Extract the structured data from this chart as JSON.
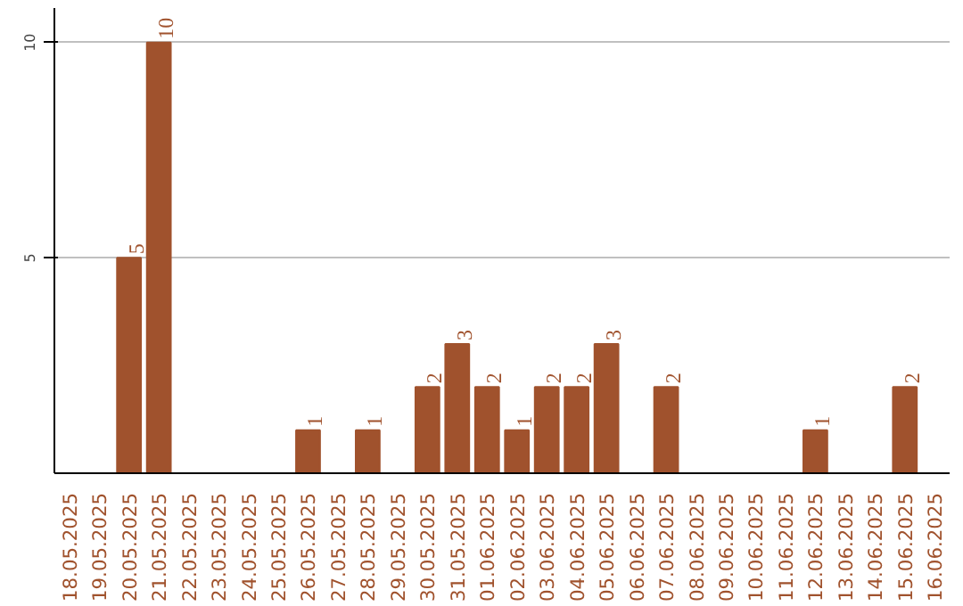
{
  "chart_data": {
    "type": "bar",
    "categories": [
      "18.05.2025",
      "19.05.2025",
      "20.05.2025",
      "21.05.2025",
      "22.05.2025",
      "23.05.2025",
      "24.05.2025",
      "25.05.2025",
      "26.05.2025",
      "27.05.2025",
      "28.05.2025",
      "29.05.2025",
      "30.05.2025",
      "31.05.2025",
      "01.06.2025",
      "02.06.2025",
      "03.06.2025",
      "04.06.2025",
      "05.06.2025",
      "06.06.2025",
      "07.06.2025",
      "08.06.2025",
      "09.06.2025",
      "10.06.2025",
      "11.06.2025",
      "12.06.2025",
      "13.06.2025",
      "14.06.2025",
      "15.06.2025",
      "16.06.2025"
    ],
    "values": [
      0,
      0,
      5,
      10,
      0,
      0,
      0,
      0,
      1,
      0,
      1,
      0,
      2,
      3,
      2,
      1,
      2,
      2,
      3,
      0,
      2,
      0,
      0,
      0,
      0,
      1,
      0,
      0,
      2,
      0
    ],
    "value_labels": [
      null,
      null,
      "5",
      "10",
      null,
      null,
      null,
      null,
      "1",
      null,
      "1",
      null,
      "2",
      "3",
      "2",
      "1",
      "2",
      "2",
      "3",
      null,
      "2",
      null,
      null,
      null,
      null,
      "1",
      null,
      null,
      "2",
      null
    ],
    "color": "#a0522d",
    "ylim": [
      0,
      10.8
    ],
    "yticks": [
      5,
      10
    ],
    "grid": "y"
  }
}
